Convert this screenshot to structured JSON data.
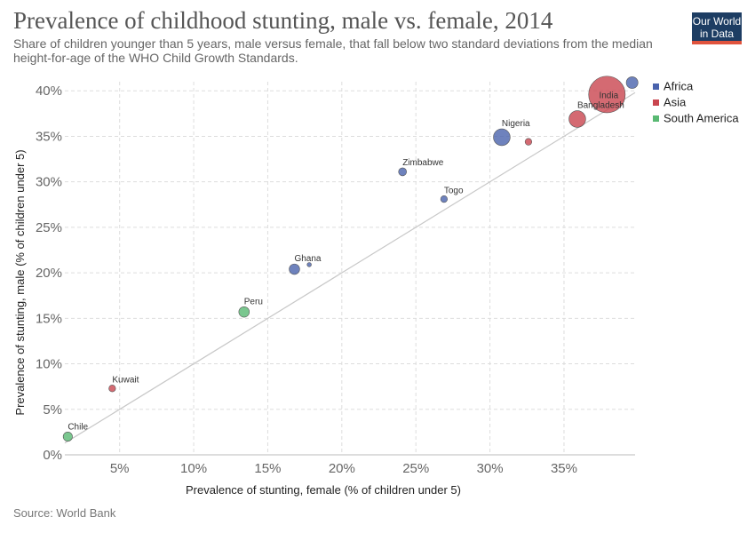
{
  "header": {
    "title": "Prevalence of childhood stunting, male vs. female, 2014",
    "subtitle": "Share of children younger than 5 years, male versus female, that fall below two standard deviations from the median height-for-age of the WHO Child Growth Standards."
  },
  "logo": {
    "line1": "Our World",
    "line2": "in Data"
  },
  "footer": {
    "source": "Source: World Bank"
  },
  "colors": {
    "Africa": "#4a63ad",
    "Asia": "#c9454f",
    "South America": "#59b973",
    "reference_line": "#c8c8c8",
    "grid": "#dddddd"
  },
  "chart_data": {
    "type": "scatter",
    "title": "Prevalence of childhood stunting, male vs. female, 2014",
    "xlabel": "Prevalence of stunting, female (% of children under 5)",
    "ylabel": "Prevalence of stunting, male (% of children under 5)",
    "xlim": [
      1.3,
      39.8
    ],
    "ylim": [
      0,
      41
    ],
    "x_ticks": [
      "5%",
      "10%",
      "15%",
      "20%",
      "25%",
      "30%",
      "35%"
    ],
    "y_ticks": [
      "0%",
      "5%",
      "10%",
      "15%",
      "20%",
      "25%",
      "30%",
      "35%",
      "40%"
    ],
    "grid": true,
    "legend_position": "top-right",
    "reference_line": "y = x",
    "legend": [
      "Africa",
      "Asia",
      "South America"
    ],
    "points": [
      {
        "label": "India",
        "region": "Asia",
        "x": 37.9,
        "y": 39.6,
        "size": 14
      },
      {
        "label": "Bangladesh",
        "region": "Asia",
        "x": 35.9,
        "y": 36.9,
        "size": 6
      },
      {
        "label": "Nigeria",
        "region": "Africa",
        "x": 30.8,
        "y": 34.9,
        "size": 6
      },
      {
        "label": "Zimbabwe",
        "region": "Africa",
        "x": 24.1,
        "y": 31.1,
        "size": 2.5
      },
      {
        "label": "Togo",
        "region": "Africa",
        "x": 26.9,
        "y": 28.1,
        "size": 2
      },
      {
        "label": "Ghana",
        "region": "Africa",
        "x": 16.8,
        "y": 20.4,
        "size": 3.5
      },
      {
        "label": "Peru",
        "region": "South America",
        "x": 13.4,
        "y": 15.7,
        "size": 3.5
      },
      {
        "label": "Kuwait",
        "region": "Asia",
        "x": 4.5,
        "y": 7.3,
        "size": 2
      },
      {
        "label": "Chile",
        "region": "South America",
        "x": 1.5,
        "y": 2.0,
        "size": 3
      },
      {
        "label": "",
        "region": "Africa",
        "x": 39.6,
        "y": 40.9,
        "size": 4
      },
      {
        "label": "",
        "region": "Asia",
        "x": 32.6,
        "y": 34.4,
        "size": 2
      },
      {
        "label": "",
        "region": "Africa",
        "x": 17.8,
        "y": 20.9,
        "size": 1
      }
    ]
  }
}
